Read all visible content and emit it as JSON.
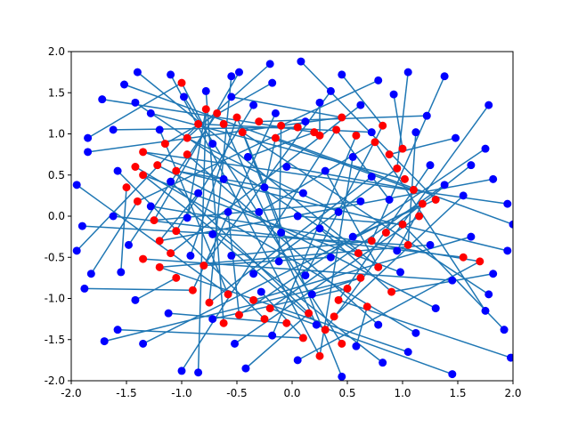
{
  "chart_data": {
    "type": "scatter",
    "title": "",
    "xlabel": "",
    "ylabel": "",
    "xlim": [
      -2.0,
      2.0
    ],
    "ylim": [
      -2.0,
      2.0
    ],
    "xticks": [
      "-2.0",
      "-1.5",
      "-1.0",
      "-0.5",
      "0.0",
      "0.5",
      "1.0",
      "1.5",
      "2.0"
    ],
    "yticks": [
      "-2.0",
      "-1.5",
      "-1.0",
      "-0.5",
      "0.0",
      "0.5",
      "1.0",
      "1.5",
      "2.0"
    ],
    "grid": false,
    "legend": "none",
    "colors": {
      "target": "#ff0000",
      "source": "#0000ff",
      "link": "#1f77b4"
    },
    "series": [
      {
        "role": "target",
        "points": [
          [
            -1.0,
            1.62
          ],
          [
            -0.78,
            1.3
          ],
          [
            -0.62,
            1.12
          ],
          [
            -0.45,
            1.02
          ],
          [
            -0.3,
            1.15
          ],
          [
            -0.1,
            1.1
          ],
          [
            0.05,
            1.08
          ],
          [
            0.2,
            1.02
          ],
          [
            0.4,
            1.05
          ],
          [
            0.58,
            0.98
          ],
          [
            0.75,
            0.9
          ],
          [
            0.88,
            0.75
          ],
          [
            0.95,
            0.58
          ],
          [
            1.02,
            0.45
          ],
          [
            1.1,
            0.32
          ],
          [
            1.18,
            0.15
          ],
          [
            1.15,
            0.0
          ],
          [
            1.0,
            -0.1
          ],
          [
            0.85,
            -0.2
          ],
          [
            0.72,
            -0.3
          ],
          [
            0.6,
            -0.45
          ],
          [
            0.78,
            -0.62
          ],
          [
            0.62,
            -0.75
          ],
          [
            0.5,
            -0.88
          ],
          [
            0.42,
            -1.02
          ],
          [
            0.38,
            -1.22
          ],
          [
            0.3,
            -1.38
          ],
          [
            0.45,
            -1.55
          ],
          [
            0.25,
            -1.7
          ],
          [
            0.1,
            -1.48
          ],
          [
            -0.05,
            -1.3
          ],
          [
            -0.2,
            -1.12
          ],
          [
            -0.35,
            -1.02
          ],
          [
            -0.48,
            -1.2
          ],
          [
            -0.62,
            -1.3
          ],
          [
            -0.75,
            -1.05
          ],
          [
            -0.9,
            -0.9
          ],
          [
            -1.05,
            -0.75
          ],
          [
            -1.2,
            -0.62
          ],
          [
            -1.35,
            -0.52
          ],
          [
            -1.2,
            -0.3
          ],
          [
            -1.05,
            -0.18
          ],
          [
            -1.25,
            -0.05
          ],
          [
            -1.4,
            0.18
          ],
          [
            -1.5,
            0.35
          ],
          [
            -1.35,
            0.5
          ],
          [
            -1.22,
            0.62
          ],
          [
            -1.35,
            0.78
          ],
          [
            -1.15,
            0.88
          ],
          [
            -0.95,
            0.95
          ],
          [
            -0.85,
            1.12
          ],
          [
            -0.68,
            1.25
          ],
          [
            -0.5,
            1.2
          ],
          [
            -1.42,
            0.6
          ],
          [
            -0.15,
            0.95
          ],
          [
            0.25,
            0.98
          ],
          [
            1.3,
            0.2
          ],
          [
            1.05,
            -0.35
          ],
          [
            1.55,
            -0.5
          ],
          [
            1.7,
            -0.55
          ],
          [
            -0.95,
            0.75
          ],
          [
            -1.05,
            0.55
          ],
          [
            -1.1,
            -0.45
          ],
          [
            -0.8,
            -0.6
          ],
          [
            -0.58,
            -0.95
          ],
          [
            -0.25,
            -1.25
          ],
          [
            0.15,
            -1.18
          ],
          [
            0.68,
            -1.1
          ],
          [
            0.9,
            -0.92
          ],
          [
            1.0,
            0.82
          ],
          [
            0.82,
            1.1
          ],
          [
            0.45,
            1.2
          ]
        ]
      },
      {
        "role": "source",
        "points": [
          [
            -1.85,
            0.95
          ],
          [
            -1.72,
            1.42
          ],
          [
            -1.52,
            1.6
          ],
          [
            -1.4,
            1.75
          ],
          [
            -1.1,
            1.72
          ],
          [
            -0.55,
            1.7
          ],
          [
            -0.48,
            1.75
          ],
          [
            -0.2,
            1.85
          ],
          [
            0.08,
            1.88
          ],
          [
            0.35,
            1.52
          ],
          [
            0.45,
            1.72
          ],
          [
            0.78,
            1.65
          ],
          [
            1.05,
            1.75
          ],
          [
            1.38,
            1.7
          ],
          [
            1.78,
            1.35
          ],
          [
            1.75,
            0.82
          ],
          [
            1.82,
            0.45
          ],
          [
            1.95,
            0.15
          ],
          [
            2.0,
            -0.1
          ],
          [
            1.95,
            -0.42
          ],
          [
            1.82,
            -0.7
          ],
          [
            1.78,
            -0.95
          ],
          [
            1.75,
            -1.15
          ],
          [
            1.92,
            -1.38
          ],
          [
            1.98,
            -1.72
          ],
          [
            1.45,
            -1.92
          ],
          [
            1.05,
            -1.65
          ],
          [
            0.82,
            -1.78
          ],
          [
            0.45,
            -1.95
          ],
          [
            0.05,
            -1.75
          ],
          [
            -0.42,
            -1.85
          ],
          [
            -0.85,
            -1.9
          ],
          [
            -1.0,
            -1.88
          ],
          [
            -1.35,
            -1.55
          ],
          [
            -1.7,
            -1.52
          ],
          [
            -1.58,
            -1.38
          ],
          [
            -1.88,
            -0.88
          ],
          [
            -1.82,
            -0.7
          ],
          [
            -1.95,
            -0.42
          ],
          [
            -1.9,
            -0.12
          ],
          [
            -1.95,
            0.38
          ],
          [
            -1.85,
            0.78
          ],
          [
            -1.62,
            1.05
          ],
          [
            -1.28,
            1.25
          ],
          [
            -1.42,
            1.38
          ],
          [
            -0.98,
            1.45
          ],
          [
            -0.78,
            1.52
          ],
          [
            -0.35,
            1.35
          ],
          [
            -0.18,
            1.62
          ],
          [
            0.25,
            1.38
          ],
          [
            0.62,
            1.35
          ],
          [
            0.92,
            1.48
          ],
          [
            1.22,
            1.22
          ],
          [
            1.48,
            0.95
          ],
          [
            1.62,
            0.62
          ],
          [
            1.55,
            0.25
          ],
          [
            1.62,
            -0.25
          ],
          [
            1.45,
            -0.78
          ],
          [
            1.3,
            -1.12
          ],
          [
            1.12,
            -1.42
          ],
          [
            0.78,
            -1.32
          ],
          [
            0.58,
            -1.58
          ],
          [
            0.22,
            -1.32
          ],
          [
            -0.18,
            -1.45
          ],
          [
            -0.52,
            -1.55
          ],
          [
            -0.72,
            -1.25
          ],
          [
            -1.12,
            -1.18
          ],
          [
            -1.42,
            -1.02
          ],
          [
            -1.55,
            -0.68
          ],
          [
            -1.48,
            -0.35
          ],
          [
            -1.62,
            0.0
          ],
          [
            -1.58,
            0.55
          ],
          [
            -0.72,
            0.88
          ],
          [
            -0.4,
            0.72
          ],
          [
            -0.05,
            0.6
          ],
          [
            0.3,
            0.55
          ],
          [
            0.55,
            0.72
          ],
          [
            0.72,
            0.48
          ],
          [
            0.62,
            0.18
          ],
          [
            0.42,
            0.05
          ],
          [
            0.55,
            -0.25
          ],
          [
            0.35,
            -0.5
          ],
          [
            0.12,
            -0.72
          ],
          [
            -0.12,
            -0.55
          ],
          [
            -0.35,
            -0.7
          ],
          [
            -0.55,
            -0.48
          ],
          [
            -0.72,
            -0.22
          ],
          [
            -0.58,
            0.05
          ],
          [
            -0.85,
            0.28
          ],
          [
            -0.62,
            0.45
          ],
          [
            -0.25,
            0.35
          ],
          [
            0.1,
            0.28
          ],
          [
            0.25,
            -0.15
          ],
          [
            -0.1,
            -0.2
          ],
          [
            -0.3,
            0.05
          ],
          [
            0.05,
            0.0
          ],
          [
            1.25,
            0.62
          ],
          [
            1.38,
            0.38
          ],
          [
            1.25,
            -0.35
          ],
          [
            0.98,
            -0.68
          ],
          [
            -0.92,
            -0.48
          ],
          [
            -1.28,
            0.12
          ],
          [
            -1.1,
            0.42
          ],
          [
            -0.95,
            -0.02
          ],
          [
            0.88,
            0.2
          ],
          [
            0.95,
            -0.42
          ],
          [
            0.18,
            -0.95
          ],
          [
            -0.28,
            -0.92
          ],
          [
            -0.15,
            1.25
          ],
          [
            0.12,
            1.15
          ],
          [
            0.72,
            1.02
          ],
          [
            1.12,
            1.02
          ],
          [
            -1.2,
            1.05
          ],
          [
            -0.55,
            1.45
          ]
        ]
      }
    ]
  }
}
